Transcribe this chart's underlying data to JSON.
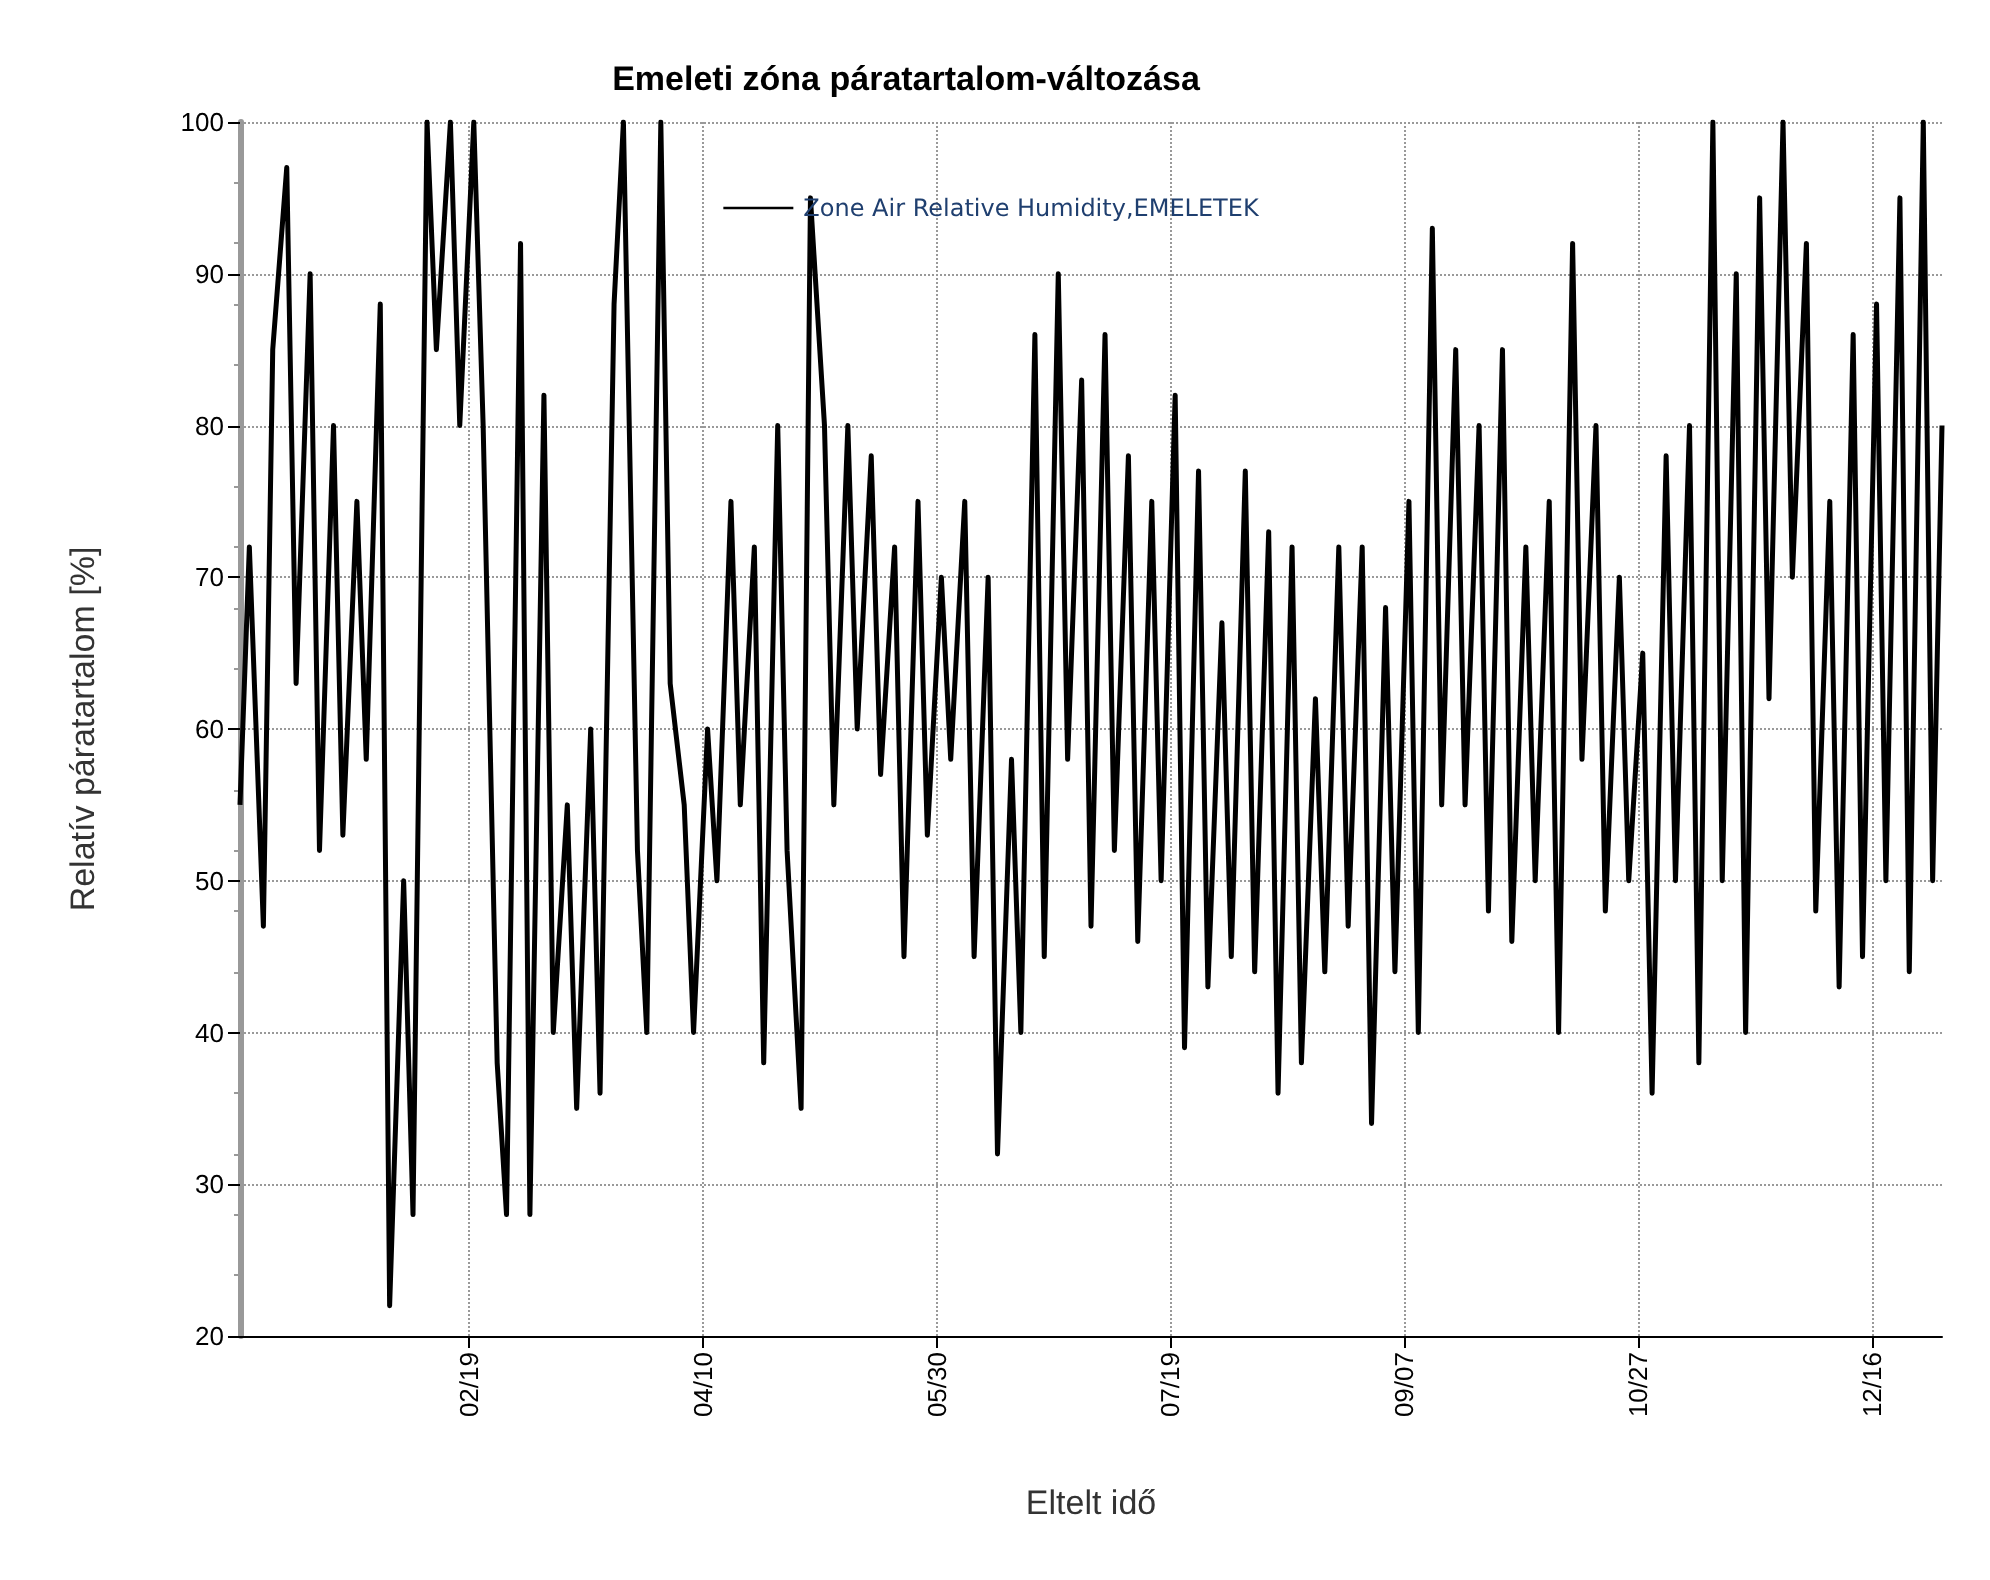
{
  "chart_data": {
    "type": "line",
    "title": "Emeleti zóna páratartalom-változása",
    "xlabel": "Eltelt idő",
    "ylabel": "Relatív páratartalom [%]",
    "x": [
      "--01-01",
      "--01-03",
      "--01-06",
      "--01-08",
      "--01-11",
      "--01-13",
      "--01-16",
      "--01-18",
      "--01-21",
      "--01-23",
      "--01-26",
      "--01-28",
      "--01-31",
      "--02-02",
      "--02-05",
      "--02-07",
      "--02-10",
      "--02-12",
      "--02-15",
      "--02-17",
      "--02-20",
      "--02-22",
      "--02-25",
      "--02-27",
      "--03-02",
      "--03-04",
      "--03-07",
      "--03-09",
      "--03-12",
      "--03-14",
      "--03-17",
      "--03-19",
      "--03-22",
      "--03-24",
      "--03-27",
      "--03-29",
      "--04-01",
      "--04-03",
      "--04-06",
      "--04-08",
      "--04-11",
      "--04-13",
      "--04-16",
      "--04-18",
      "--04-21",
      "--04-23",
      "--04-26",
      "--04-28",
      "--05-01",
      "--05-03",
      "--05-06",
      "--05-08",
      "--05-11",
      "--05-13",
      "--05-16",
      "--05-18",
      "--05-21",
      "--05-23",
      "--05-26",
      "--05-28",
      "--05-31",
      "--06-02",
      "--06-05",
      "--06-07",
      "--06-10",
      "--06-12",
      "--06-15",
      "--06-17",
      "--06-20",
      "--06-22",
      "--06-25",
      "--06-27",
      "--06-30",
      "--07-02",
      "--07-05",
      "--07-07",
      "--07-10",
      "--07-12",
      "--07-15",
      "--07-17",
      "--07-20",
      "--07-22",
      "--07-25",
      "--07-27",
      "--07-30",
      "--08-01",
      "--08-04",
      "--08-06",
      "--08-09",
      "--08-11",
      "--08-14",
      "--08-16",
      "--08-19",
      "--08-21",
      "--08-24",
      "--08-26",
      "--08-29",
      "--08-31",
      "--09-03",
      "--09-05",
      "--09-08",
      "--09-10",
      "--09-13",
      "--09-15",
      "--09-18",
      "--09-20",
      "--09-23",
      "--09-25",
      "--09-28",
      "--09-30",
      "--10-03",
      "--10-05",
      "--10-08",
      "--10-10",
      "--10-13",
      "--10-15",
      "--10-18",
      "--10-20",
      "--10-23",
      "--10-25",
      "--10-28",
      "--10-30",
      "--11-02",
      "--11-04",
      "--11-07",
      "--11-09",
      "--11-12",
      "--11-14",
      "--11-17",
      "--11-19",
      "--11-22",
      "--11-24",
      "--11-27",
      "--11-29",
      "--12-02",
      "--12-04",
      "--12-07",
      "--12-09",
      "--12-12",
      "--12-14",
      "--12-17",
      "--12-19",
      "--12-22",
      "--12-24",
      "--12-27",
      "--12-29",
      "--12-31"
    ],
    "series": [
      {
        "name": "Zone Air Relative Humidity,EMELETEK",
        "color": "#000000",
        "values": [
          55,
          72,
          47,
          85,
          97,
          63,
          90,
          52,
          80,
          53,
          75,
          58,
          88,
          22,
          50,
          28,
          100,
          85,
          100,
          80,
          100,
          80,
          38,
          28,
          92,
          28,
          82,
          40,
          55,
          35,
          60,
          36,
          88,
          100,
          52,
          40,
          100,
          63,
          55,
          40,
          60,
          50,
          75,
          55,
          72,
          38,
          80,
          52,
          35,
          95,
          80,
          55,
          80,
          60,
          78,
          57,
          72,
          45,
          75,
          53,
          70,
          58,
          75,
          45,
          70,
          32,
          58,
          40,
          86,
          45,
          90,
          58,
          83,
          47,
          86,
          52,
          78,
          46,
          75,
          50,
          82,
          39,
          77,
          43,
          67,
          45,
          77,
          44,
          73,
          36,
          72,
          38,
          62,
          44,
          72,
          47,
          72,
          34,
          68,
          44,
          75,
          40,
          93,
          55,
          85,
          55,
          80,
          48,
          85,
          46,
          72,
          50,
          75,
          40,
          92,
          58,
          80,
          48,
          70,
          50,
          65,
          36,
          78,
          50,
          80,
          38,
          100,
          50,
          90,
          40,
          95,
          62,
          100,
          70,
          92,
          48,
          75,
          43,
          86,
          45,
          88,
          50,
          95,
          44,
          100,
          50,
          80
        ]
      }
    ],
    "xlim": [
      "--01-01",
      "--12-31"
    ],
    "xticks": [
      {
        "value": "--02-19",
        "label": "02/19"
      },
      {
        "value": "--04-10",
        "label": "04/10"
      },
      {
        "value": "--05-30",
        "label": "05/30"
      },
      {
        "value": "--07-19",
        "label": "07/19"
      },
      {
        "value": "--09-07",
        "label": "09/07"
      },
      {
        "value": "--10-27",
        "label": "10/27"
      },
      {
        "value": "--12-16",
        "label": "12/16"
      }
    ],
    "ylim": [
      20,
      100
    ],
    "yticks": [
      20,
      30,
      40,
      50,
      60,
      70,
      80,
      90,
      100
    ],
    "grid": true,
    "legend": "top",
    "marker": "none",
    "line_style": "solid"
  }
}
